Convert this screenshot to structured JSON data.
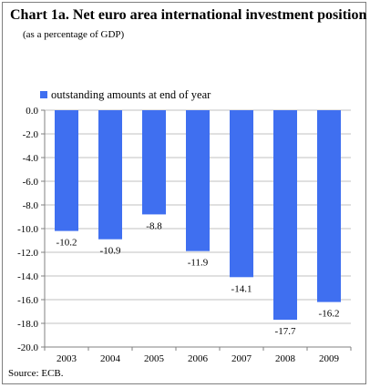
{
  "title": "Chart 1a. Net euro area international investment position",
  "subtitle": "(as a percentage of GDP)",
  "source": "Source: ECB.",
  "colors": {
    "bar": "#3f6ff0",
    "grid": "#c0c0c0",
    "axis": "#808080"
  },
  "chart_data": {
    "type": "bar",
    "categories": [
      "2003",
      "2004",
      "2005",
      "2006",
      "2007",
      "2008",
      "2009"
    ],
    "series": [
      {
        "name": "outstanding amounts at end of year",
        "values": [
          -10.2,
          -10.9,
          -8.8,
          -11.9,
          -14.1,
          -17.7,
          -16.2
        ]
      }
    ],
    "data_labels": [
      "-10.2",
      "-10.9",
      "-8.8",
      "-11.9",
      "-14.1",
      "-17.7",
      "-16.2"
    ],
    "ylim": [
      -20.0,
      0.0
    ],
    "ytick_step": 2,
    "ytick_labels": [
      "0.0",
      "-2.0",
      "-4.0",
      "-6.0",
      "-8.0",
      "-10.0",
      "-12.0",
      "-14.0",
      "-16.0",
      "-18.0",
      "-20.0"
    ],
    "grid": true,
    "legend_position": "top-left"
  }
}
